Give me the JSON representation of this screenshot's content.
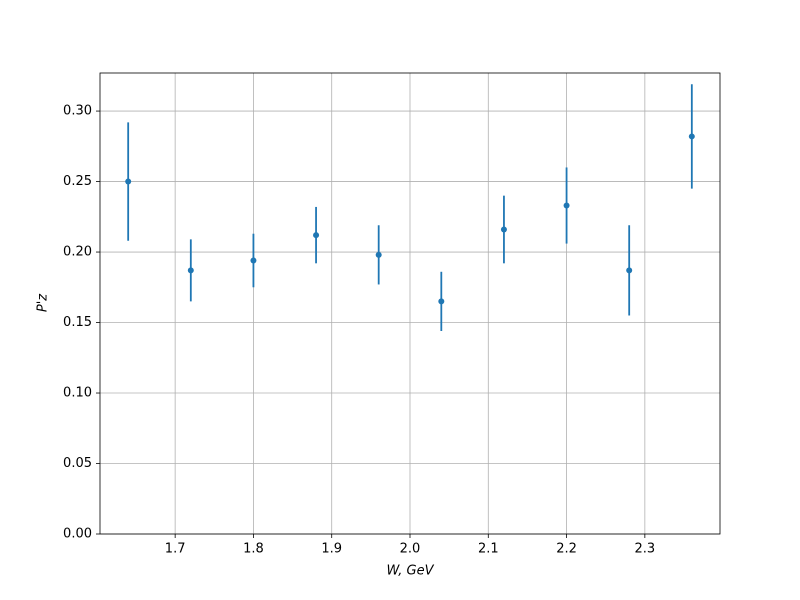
{
  "chart_data": {
    "type": "errorbar",
    "xlabel": "W, GeV",
    "ylabel": "P'z",
    "x": [
      1.64,
      1.72,
      1.8,
      1.88,
      1.96,
      2.04,
      2.12,
      2.2,
      2.28,
      2.36
    ],
    "values": [
      0.25,
      0.187,
      0.194,
      0.212,
      0.198,
      0.165,
      0.216,
      0.233,
      0.187,
      0.282
    ],
    "errors": [
      0.042,
      0.022,
      0.019,
      0.02,
      0.021,
      0.021,
      0.024,
      0.027,
      0.032,
      0.037
    ],
    "color": "#1f77b4",
    "xlim": [
      1.604,
      2.396
    ],
    "xticks": [
      1.7,
      1.8,
      1.9,
      {
        "value": 2.0,
        "label": "2.0"
      },
      2.1,
      2.2,
      2.3
    ],
    "ylim": [
      0,
      0.327
    ],
    "yticks": [
      {
        "value": 0,
        "label": "0.00"
      },
      {
        "value": 0.05,
        "label": "0.05"
      },
      {
        "value": 0.1,
        "label": "0.10"
      },
      {
        "value": 0.15,
        "label": "0.15"
      },
      {
        "value": 0.2,
        "label": "0.20"
      },
      {
        "value": 0.25,
        "label": "0.25"
      },
      {
        "value": 0.3,
        "label": "0.30"
      }
    ],
    "grid": true
  }
}
